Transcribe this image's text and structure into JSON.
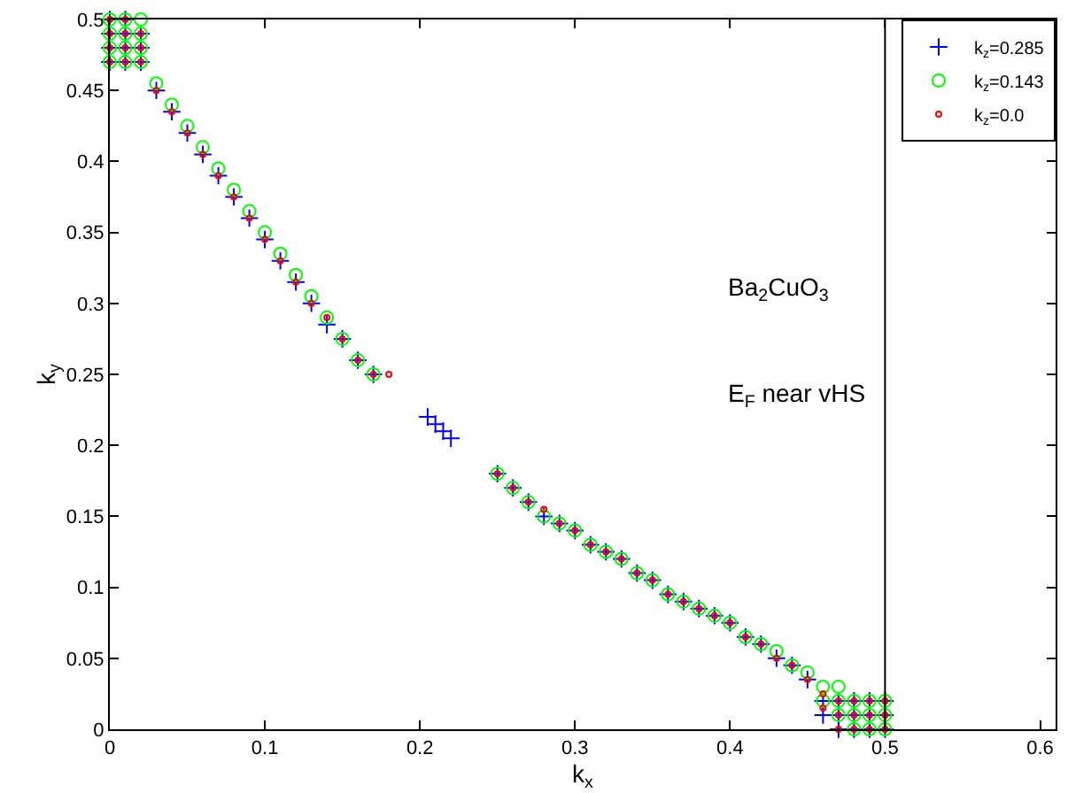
{
  "chart_data": {
    "type": "scatter",
    "xlabel": "k$_{x}$",
    "ylabel": "k$_{y}$",
    "xlim": [
      0,
      0.61
    ],
    "xticks": [
      0,
      0.1,
      0.2,
      0.3,
      0.4,
      0.5,
      0.6
    ],
    "ylim": [
      0,
      0.5
    ],
    "yticks": [
      0,
      0.05,
      0.1,
      0.15,
      0.2,
      0.25,
      0.3,
      0.35,
      0.4,
      0.45,
      0.5
    ],
    "legend": "top right",
    "annotations": [
      "Ba$_{2}$CuO$_{3}$",
      "E$_{F}$ near vHS"
    ],
    "ref_lines": [
      {
        "axis": "x",
        "value": 0.5,
        "label": null,
        "color": "#000000"
      }
    ],
    "series": [
      {
        "name": "k$_{z}$=0.285",
        "color": "#0000ff",
        "marker": "cross",
        "x": [
          0,
          0,
          0,
          0,
          0.01,
          0.01,
          0.01,
          0.01,
          0.02,
          0.02,
          0.02,
          0.03,
          0.04,
          0.05,
          0.06,
          0.07,
          0.08,
          0.09,
          0.1,
          0.11,
          0.12,
          0.13,
          0.14,
          0.15,
          0.16,
          0.17,
          0.205,
          0.21,
          0.215,
          0.22,
          0.25,
          0.26,
          0.27,
          0.28,
          0.29,
          0.3,
          0.31,
          0.32,
          0.33,
          0.34,
          0.35,
          0.36,
          0.37,
          0.38,
          0.39,
          0.4,
          0.41,
          0.42,
          0.43,
          0.44,
          0.45,
          0.46,
          0.46,
          0.47,
          0.47,
          0.47,
          0.48,
          0.48,
          0.48,
          0.49,
          0.49,
          0.49,
          0.5,
          0.5,
          0.5
        ],
        "values": [
          0.47,
          0.48,
          0.49,
          0.5,
          0.47,
          0.48,
          0.49,
          0.5,
          0.47,
          0.48,
          0.49,
          0.45,
          0.435,
          0.42,
          0.405,
          0.39,
          0.375,
          0.36,
          0.345,
          0.33,
          0.315,
          0.3,
          0.285,
          0.275,
          0.26,
          0.25,
          0.22,
          0.215,
          0.21,
          0.205,
          0.18,
          0.17,
          0.16,
          0.15,
          0.145,
          0.14,
          0.13,
          0.125,
          0.12,
          0.11,
          0.105,
          0.095,
          0.09,
          0.085,
          0.08,
          0.075,
          0.065,
          0.06,
          0.05,
          0.045,
          0.035,
          0.02,
          0.01,
          0.02,
          0.01,
          0,
          0.02,
          0.01,
          0,
          0.02,
          0.01,
          0,
          0.02,
          0.01,
          0
        ]
      },
      {
        "name": "k$_{z}$=0.143",
        "color": "#00ff00",
        "marker": "circle",
        "x": [
          0,
          0,
          0,
          0,
          0.01,
          0.01,
          0.01,
          0.01,
          0.02,
          0.02,
          0.02,
          0.02,
          0.03,
          0.04,
          0.05,
          0.06,
          0.07,
          0.08,
          0.09,
          0.1,
          0.11,
          0.12,
          0.13,
          0.14,
          0.15,
          0.16,
          0.17,
          0.25,
          0.26,
          0.27,
          0.28,
          0.29,
          0.3,
          0.31,
          0.32,
          0.33,
          0.34,
          0.35,
          0.36,
          0.37,
          0.38,
          0.39,
          0.4,
          0.41,
          0.42,
          0.43,
          0.44,
          0.45,
          0.46,
          0.46,
          0.47,
          0.47,
          0.47,
          0.48,
          0.48,
          0.48,
          0.49,
          0.49,
          0.49,
          0.5,
          0.5,
          0.5
        ],
        "values": [
          0.47,
          0.48,
          0.49,
          0.5,
          0.47,
          0.48,
          0.49,
          0.5,
          0.47,
          0.48,
          0.49,
          0.5,
          0.455,
          0.44,
          0.425,
          0.41,
          0.395,
          0.38,
          0.365,
          0.35,
          0.335,
          0.32,
          0.305,
          0.29,
          0.275,
          0.26,
          0.25,
          0.18,
          0.17,
          0.16,
          0.15,
          0.145,
          0.14,
          0.13,
          0.125,
          0.12,
          0.11,
          0.105,
          0.095,
          0.09,
          0.085,
          0.08,
          0.075,
          0.065,
          0.06,
          0.055,
          0.045,
          0.04,
          0.03,
          0.02,
          0.03,
          0.02,
          0.01,
          0.02,
          0.01,
          0,
          0.02,
          0.01,
          0,
          0.02,
          0.01,
          0
        ]
      },
      {
        "name": "k$_{z}$=0.0",
        "color": "#ff0000",
        "marker": "circle",
        "x": [
          0,
          0,
          0,
          0,
          0.01,
          0.01,
          0.01,
          0.01,
          0.02,
          0.02,
          0.02,
          0.03,
          0.04,
          0.05,
          0.06,
          0.07,
          0.08,
          0.09,
          0.1,
          0.11,
          0.12,
          0.13,
          0.14,
          0.15,
          0.16,
          0.17,
          0.18,
          0.25,
          0.26,
          0.27,
          0.28,
          0.29,
          0.3,
          0.31,
          0.32,
          0.33,
          0.34,
          0.35,
          0.36,
          0.37,
          0.38,
          0.39,
          0.4,
          0.41,
          0.42,
          0.43,
          0.44,
          0.45,
          0.46,
          0.46,
          0.47,
          0.47,
          0.47,
          0.48,
          0.48,
          0.48,
          0.49,
          0.49,
          0.49,
          0.5,
          0.5,
          0.5
        ],
        "values": [
          0.47,
          0.48,
          0.49,
          0.5,
          0.47,
          0.48,
          0.49,
          0.5,
          0.47,
          0.48,
          0.49,
          0.45,
          0.435,
          0.42,
          0.405,
          0.39,
          0.375,
          0.36,
          0.345,
          0.33,
          0.315,
          0.3,
          0.29,
          0.275,
          0.26,
          0.25,
          0.25,
          0.18,
          0.17,
          0.16,
          0.155,
          0.145,
          0.14,
          0.13,
          0.125,
          0.12,
          0.11,
          0.105,
          0.095,
          0.09,
          0.085,
          0.08,
          0.075,
          0.065,
          0.06,
          0.05,
          0.045,
          0.035,
          0.025,
          0.015,
          0.02,
          0.01,
          0,
          0.02,
          0.01,
          0,
          0.02,
          0.01,
          0,
          0.02,
          0.01,
          0
        ]
      }
    ]
  }
}
